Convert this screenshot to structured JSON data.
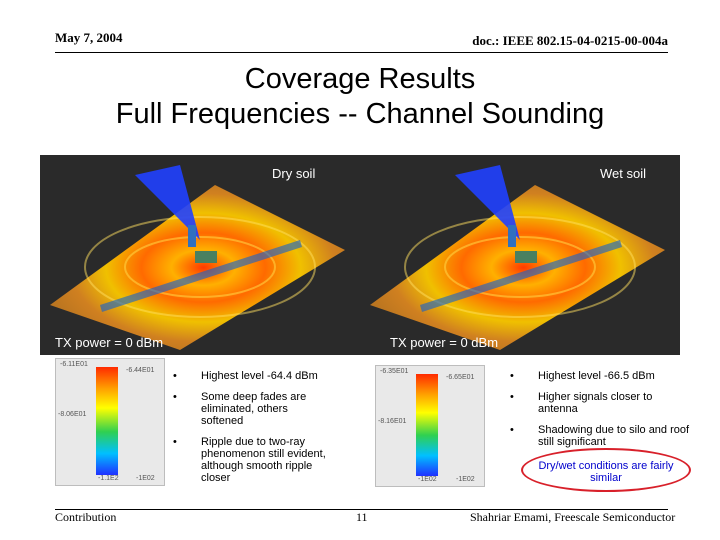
{
  "header": {
    "date": "May 7, 2004",
    "doc_id": "doc.: IEEE 802.15-04-0215-00-004a"
  },
  "title": {
    "line1": "Coverage Results",
    "line2": "Full Frequencies -- Channel Sounding"
  },
  "panels": {
    "left": {
      "label": "Dry soil",
      "tx_power": "TX power = 0 dBm"
    },
    "right": {
      "label": "Wet soil",
      "tx_power": "TX power = 0 dBm"
    }
  },
  "legends": {
    "left": {
      "top_left": "-6.11E01",
      "top_right": "-6.44E01",
      "mid": "-8.06E01",
      "bottom_left": "-1.1E2",
      "bottom_right": "-1E02"
    },
    "right": {
      "top_left": "-6.35E01",
      "top_right": "-6.65E01",
      "mid": "-8.16E01",
      "bottom_left": "-1E02",
      "bottom_right": "-1E02"
    }
  },
  "bullets": {
    "left": [
      "Highest level -64.4 dBm",
      "Some deep fades are eliminated, others softened",
      "Ripple due to two-ray phenomenon still evident, although smooth ripple closer"
    ],
    "right": [
      "Highest level -66.5 dBm",
      "Higher signals closer to antenna",
      "Shadowing due to silo and roof still significant"
    ]
  },
  "callout": "Dry/wet conditions are fairly similar",
  "footer": {
    "left": "Contribution",
    "page": "11",
    "right": "Shahriar Emami, Freescale Semiconductor"
  },
  "colors": {
    "callout_border": "#d8202a",
    "callout_text": "#0000cc"
  }
}
